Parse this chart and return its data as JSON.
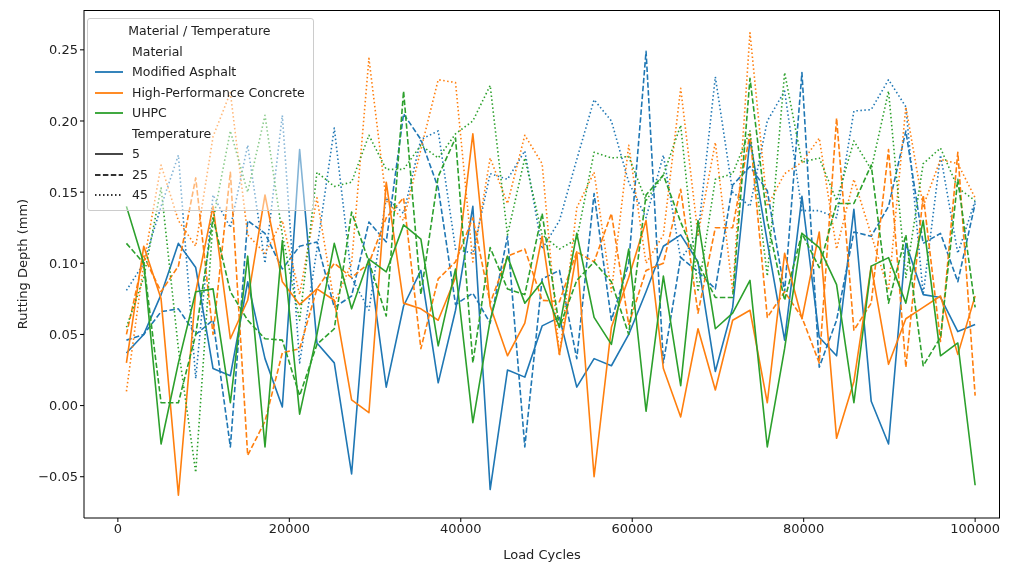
{
  "chart_data": {
    "type": "line",
    "xlabel": "Load Cycles",
    "ylabel": "Rutting Depth (mm)",
    "legend_title": "Material / Temperature",
    "legend": "top left",
    "grid": false,
    "annotations": [
      "Material",
      "Temperature",
      "5",
      "25",
      "45"
    ],
    "xlim": [
      -3950,
      102900
    ],
    "xticks": [
      0,
      20000,
      40000,
      60000,
      80000,
      100000
    ],
    "ylim": [
      -0.079,
      0.278
    ],
    "yticks": [
      {
        "value": -0.05,
        "label": "−0.05"
      },
      {
        "value": 0,
        "label": "0.00"
      },
      {
        "value": 0.05,
        "label": "0.05"
      },
      {
        "value": 0.1,
        "label": "0.10"
      },
      {
        "value": 0.15,
        "label": "0.15"
      },
      {
        "value": 0.2,
        "label": "0.20"
      },
      {
        "value": 0.25,
        "label": "0.25"
      }
    ],
    "x": [
      1000,
      3020,
      5041,
      7061,
      9082,
      11102,
      13122,
      15143,
      17163,
      19184,
      21204,
      23224,
      25245,
      27265,
      29286,
      31306,
      33327,
      35347,
      37367,
      39388,
      41408,
      43429,
      45449,
      47469,
      49490,
      51510,
      53531,
      55551,
      57571,
      59592,
      61612,
      63633,
      65653,
      67673,
      69694,
      71714,
      73735,
      75755,
      77776,
      79796,
      81816,
      83837,
      85857,
      87878,
      89898,
      91918,
      93939,
      95959,
      97980,
      100000
    ],
    "series": [
      {
        "name": "Modified Asphalt",
        "color": "#1f77b4",
        "line_style": "solid",
        "values": [
          0.037,
          0.05,
          0.078,
          0.114,
          0.097,
          0.026,
          0.021,
          0.087,
          0.033,
          -0.001,
          0.18,
          0.044,
          0.03,
          -0.048,
          0.103,
          0.013,
          0.07,
          0.095,
          0.016,
          0.067,
          0.14,
          -0.059,
          0.025,
          0.02,
          0.056,
          0.062,
          0.013,
          0.033,
          0.028,
          0.05,
          0.08,
          0.112,
          0.12,
          0.101,
          0.024,
          0.069,
          0.187,
          0.115,
          0.046,
          0.147,
          0.048,
          0.035,
          0.138,
          0.003,
          -0.027,
          0.114,
          0.078,
          0.076,
          0.052,
          0.057
        ]
      },
      {
        "color": "#1f77b4",
        "line_style": "dashed",
        "values": [
          0.046,
          0.05,
          0.066,
          0.068,
          0.05,
          0.06,
          -0.029,
          0.13,
          0.121,
          0.096,
          0.112,
          0.115,
          0.069,
          0.077,
          0.129,
          0.115,
          0.205,
          0.187,
          0.153,
          0.071,
          0.079,
          0.058,
          0.119,
          -0.029,
          0.089,
          0.095,
          0.033,
          0.149,
          0.06,
          0.1,
          0.249,
          0.03,
          0.104,
          0.094,
          0.082,
          0.155,
          0.168,
          0.151,
          0.08,
          0.234,
          0.027,
          0.06,
          0.122,
          0.119,
          0.14,
          0.193,
          0.114,
          0.121,
          0.087,
          0.142
        ]
      },
      {
        "color": "#1f77b4",
        "line_style": "dotted",
        "values": [
          0.081,
          0.1,
          0.14,
          0.176,
          0.019,
          0.148,
          0.125,
          0.183,
          0.1,
          0.204,
          0.03,
          0.11,
          0.195,
          0.09,
          0.067,
          0.146,
          0.135,
          0.187,
          0.193,
          0.11,
          0.107,
          0.163,
          0.159,
          0.179,
          0.11,
          0.13,
          0.173,
          0.215,
          0.2,
          0.157,
          0.132,
          0.176,
          0.103,
          0.12,
          0.231,
          0.15,
          0.14,
          0.2,
          0.221,
          0.137,
          0.137,
          0.132,
          0.207,
          0.208,
          0.229,
          0.21,
          0.078,
          0.176,
          0.107,
          0.144
        ]
      },
      {
        "name": "High-Performance Concrete",
        "color": "#ff7f0e",
        "line_style": "solid",
        "values": [
          0.03,
          0.112,
          0.075,
          -0.063,
          0.08,
          0.14,
          0.047,
          0.074,
          0.148,
          0.087,
          0.071,
          0.082,
          0.074,
          0.004,
          -0.005,
          0.157,
          0.072,
          0.068,
          0.06,
          0.09,
          0.191,
          0.07,
          0.035,
          0.058,
          0.119,
          0.036,
          0.108,
          -0.05,
          0.055,
          0.09,
          0.13,
          0.026,
          -0.008,
          0.054,
          0.011,
          0.06,
          0.067,
          0.002,
          0.107,
          0.061,
          0.122,
          -0.023,
          0.017,
          0.098,
          0.029,
          0.061,
          0.069,
          0.077,
          0.036,
          0.077
        ]
      },
      {
        "color": "#ff7f0e",
        "line_style": "dashed",
        "values": [
          0.05,
          0.105,
          0.08,
          0.098,
          0.16,
          0.05,
          0.164,
          -0.035,
          -0.011,
          0.037,
          0.04,
          0.082,
          0.1,
          0.09,
          0.1,
          0.132,
          0.146,
          0.04,
          0.089,
          0.101,
          0.132,
          0.072,
          0.105,
          0.11,
          0.074,
          0.073,
          0.108,
          0.101,
          0.135,
          0.057,
          0.095,
          0.1,
          0.152,
          0.065,
          0.125,
          0.125,
          0.191,
          0.062,
          0.08,
          0.062,
          0.03,
          0.202,
          0.053,
          0.072,
          0.18,
          0.027,
          0.148,
          0.045,
          0.178,
          0.007
        ]
      },
      {
        "color": "#ff7f0e",
        "line_style": "dotted",
        "values": [
          0.01,
          0.1,
          0.169,
          0.13,
          0.112,
          0.189,
          0.22,
          0.12,
          0.107,
          0.13,
          0.078,
          0.146,
          0.072,
          0.1,
          0.244,
          0.144,
          0.13,
          0.18,
          0.229,
          0.227,
          0.101,
          0.174,
          0.142,
          0.19,
          0.17,
          0.035,
          0.139,
          0.164,
          0.08,
          0.183,
          0.1,
          0.12,
          0.223,
          0.12,
          0.185,
          0.08,
          0.262,
          0.14,
          0.163,
          0.171,
          0.188,
          0.11,
          0.159,
          0.12,
          0.081,
          0.21,
          0.14,
          0.173,
          0.17,
          0.146
        ]
      },
      {
        "name": "UHPC",
        "color": "#2ca02c",
        "line_style": "solid",
        "values": [
          0.14,
          0.1,
          -0.027,
          0.03,
          0.08,
          0.082,
          0.002,
          0.105,
          -0.029,
          0.116,
          -0.006,
          0.05,
          0.114,
          0.068,
          0.103,
          0.094,
          0.127,
          0.117,
          0.042,
          0.096,
          -0.012,
          0.06,
          0.105,
          0.072,
          0.087,
          0.055,
          0.121,
          0.062,
          0.043,
          0.11,
          -0.004,
          0.091,
          0.014,
          0.13,
          0.054,
          0.065,
          0.088,
          -0.029,
          0.04,
          0.121,
          0.111,
          0.085,
          0.002,
          0.098,
          0.104,
          0.072,
          0.13,
          0.035,
          0.044,
          -0.056
        ]
      },
      {
        "color": "#2ca02c",
        "line_style": "dashed",
        "values": [
          0.114,
          0.1,
          0.002,
          0.002,
          0.05,
          0.132,
          0.08,
          0.06,
          0.047,
          0.046,
          0.007,
          0.043,
          0.054,
          0.136,
          0.101,
          0.063,
          0.221,
          0.078,
          0.161,
          0.188,
          0.03,
          0.111,
          0.082,
          0.078,
          0.135,
          0.055,
          0.088,
          0.101,
          0.087,
          0.05,
          0.148,
          0.162,
          0.129,
          0.1,
          0.076,
          0.076,
          0.23,
          0.13,
          0.074,
          0.121,
          0.097,
          0.142,
          0.142,
          0.169,
          0.072,
          0.12,
          0.028,
          0.048,
          0.159,
          0.069
        ]
      },
      {
        "color": "#2ca02c",
        "line_style": "dotted",
        "values": [
          0.055,
          0.09,
          0.153,
          0.04,
          -0.047,
          0.13,
          0.193,
          0.15,
          0.204,
          0.12,
          0.06,
          0.164,
          0.154,
          0.157,
          0.19,
          0.166,
          0.166,
          0.183,
          0.174,
          0.191,
          0.2,
          0.225,
          0.12,
          0.174,
          0.12,
          0.11,
          0.117,
          0.178,
          0.174,
          0.175,
          0.144,
          0.162,
          0.197,
          0.08,
          0.159,
          0.163,
          0.193,
          0.091,
          0.234,
          0.171,
          0.174,
          0.144,
          0.186,
          0.166,
          0.221,
          0.09,
          0.17,
          0.181,
          0.153,
          0.144
        ]
      }
    ]
  }
}
